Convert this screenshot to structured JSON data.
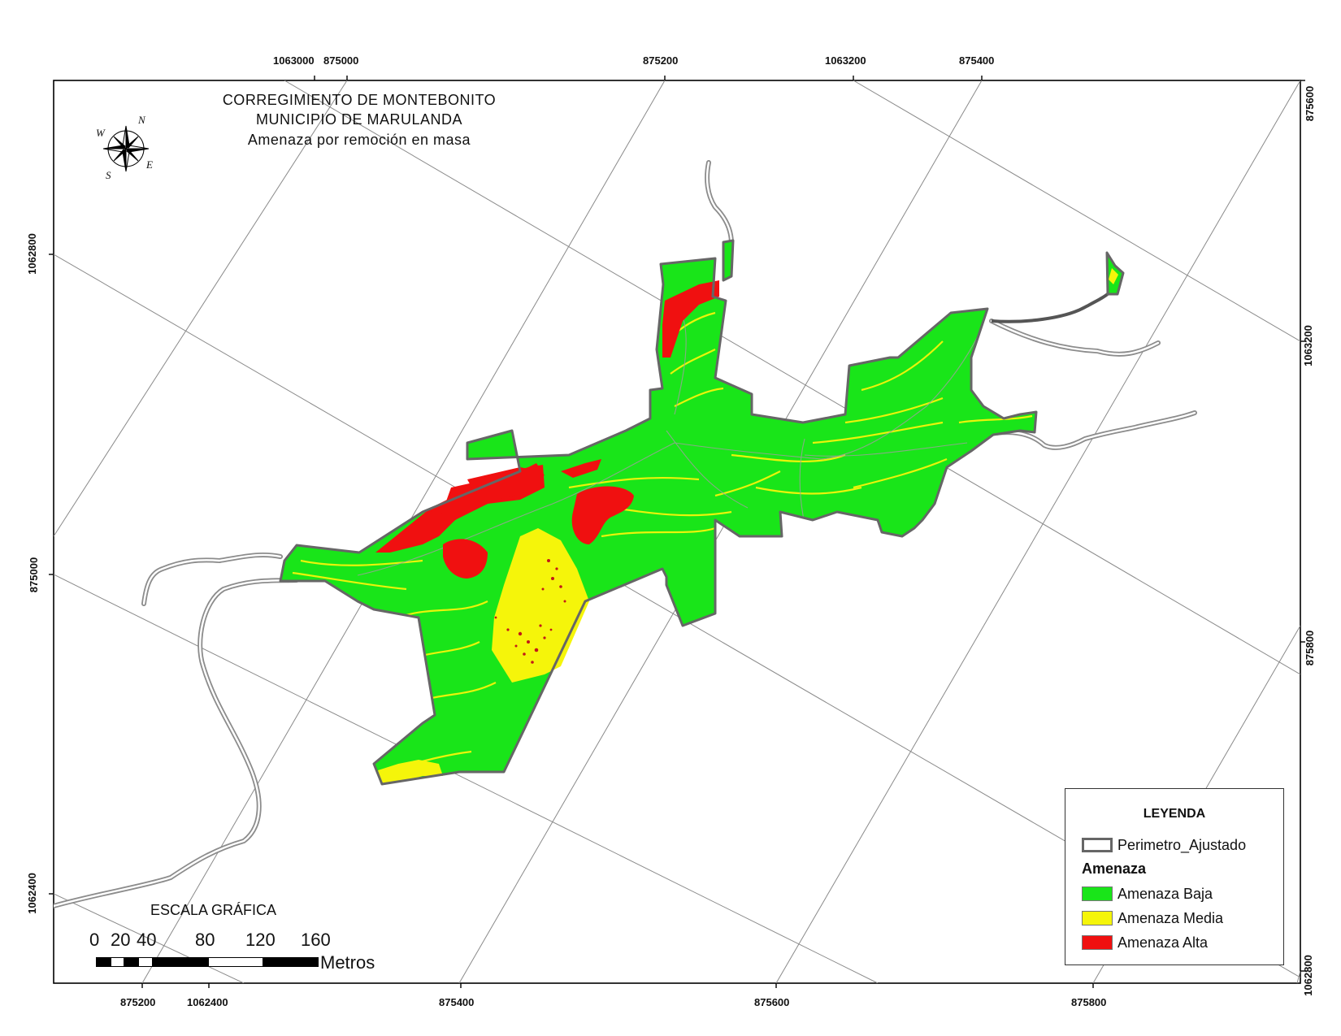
{
  "title": {
    "line1": "CORREGIMIENTO DE MONTEBONITO",
    "line2": "MUNICIPIO DE MARULANDA",
    "line3": "Amenaza por remoción en masa"
  },
  "compass": {
    "icon": "compass-rose-icon",
    "n": "N",
    "e": "E",
    "s": "S",
    "w": "W"
  },
  "ticks": {
    "top": [
      "1063000",
      "875000",
      "875200",
      "1063200",
      "875400"
    ],
    "bottom": [
      "875200",
      "1062400",
      "875400",
      "875600",
      "875800"
    ],
    "left": [
      "1062800",
      "875000",
      "1062400"
    ],
    "right": [
      "875600",
      "1063200",
      "875800",
      "1062800"
    ]
  },
  "legend": {
    "title": "LEYENDA",
    "perimeter": "Perimetro_Ajustado",
    "group": "Amenaza",
    "items": [
      {
        "label": "Amenaza Baja",
        "color": "#19e519"
      },
      {
        "label": "Amenaza Media",
        "color": "#f5f50a"
      },
      {
        "label": "Amenaza Alta",
        "color": "#f01010"
      }
    ]
  },
  "scale": {
    "title": "ESCALA GRÁFICA",
    "labels": [
      "0",
      "20",
      "40",
      "80",
      "120",
      "160"
    ],
    "unit": "Metros"
  },
  "colors": {
    "low": "#19e519",
    "medium": "#f5f50a",
    "high": "#f01010",
    "perimeter": "#666666",
    "road": "#9a9a9a"
  }
}
